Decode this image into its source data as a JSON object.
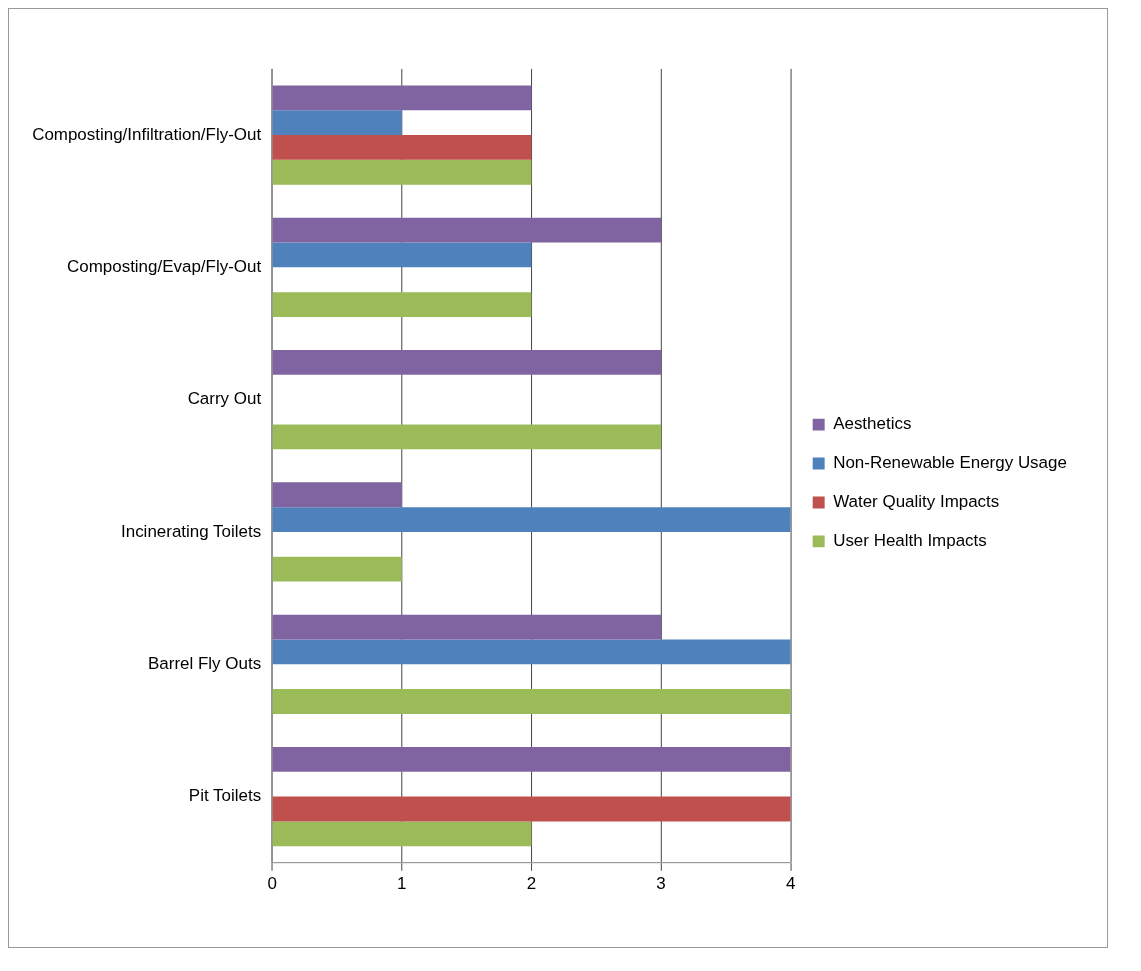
{
  "chart_data": {
    "type": "bar",
    "orientation": "horizontal",
    "categories": [
      "Composting/Infiltration/Fly-Out",
      "Composting/Evap/Fly-Out",
      "Carry Out",
      "Incinerating Toilets",
      "Barrel Fly Outs",
      "Pit Toilets"
    ],
    "series": [
      {
        "name": "Aesthetics",
        "color": "#8064a2",
        "values": [
          2,
          3,
          3,
          1,
          3,
          4
        ]
      },
      {
        "name": "Non-Renewable Energy Usage",
        "color": "#4f81bd",
        "values": [
          1,
          2,
          0,
          4,
          4,
          0
        ]
      },
      {
        "name": "Water Quality Impacts",
        "color": "#c0504d",
        "values": [
          2,
          0,
          0,
          0,
          0,
          4
        ]
      },
      {
        "name": "User Health Impacts",
        "color": "#9bbb59",
        "values": [
          2,
          2,
          3,
          1,
          4,
          2
        ]
      }
    ],
    "xlim": [
      0,
      4
    ],
    "xticks": [
      0,
      1,
      2,
      3,
      4
    ],
    "grid": "x",
    "legend": "right"
  }
}
